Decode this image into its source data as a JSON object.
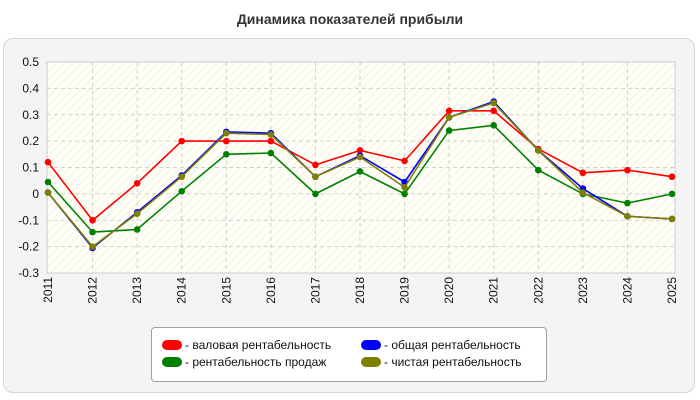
{
  "page": {
    "title": "Динамика показателей прибыли"
  },
  "chart_data": {
    "type": "line",
    "title": "Динамика показателей прибыли",
    "xlabel": "",
    "ylabel": "",
    "x": [
      "2011",
      "2012",
      "2013",
      "2014",
      "2015",
      "2016",
      "2017",
      "2018",
      "2019",
      "2020",
      "2021",
      "2022",
      "2023",
      "2024",
      "2025"
    ],
    "ylim": [
      -0.3,
      0.5
    ],
    "yticks": [
      "0.5",
      "0.4",
      "0.3",
      "0.2",
      "0.1",
      "0",
      "-0.1",
      "-0.2",
      "-0.3"
    ],
    "ytick_values": [
      0.5,
      0.4,
      0.3,
      0.2,
      0.1,
      0,
      -0.1,
      -0.2,
      -0.3
    ],
    "grid": true,
    "legend_position": "bottom-center",
    "series": [
      {
        "name": "- валовая рентабельность",
        "color": "#ff0000",
        "values": [
          0.12,
          -0.1,
          0.04,
          0.2,
          0.2,
          0.2,
          0.11,
          0.165,
          0.125,
          0.315,
          0.315,
          0.17,
          0.08,
          0.09,
          0.065
        ]
      },
      {
        "name": "- рентабельность продаж",
        "color": "#008000",
        "values": [
          0.045,
          -0.145,
          -0.135,
          0.01,
          0.15,
          0.155,
          0.0,
          0.085,
          0.0,
          0.24,
          0.26,
          0.09,
          0.0,
          -0.035,
          0.0
        ]
      },
      {
        "name": "- общая рентабельность",
        "color": "#0000ff",
        "values": [
          0.005,
          -0.205,
          -0.07,
          0.07,
          0.235,
          0.23,
          0.065,
          0.145,
          0.045,
          0.29,
          0.35,
          0.165,
          0.02,
          -0.085,
          -0.095
        ]
      },
      {
        "name": "- чистая рентабельность",
        "color": "#808000",
        "values": [
          0.005,
          -0.2,
          -0.075,
          0.065,
          0.23,
          0.225,
          0.065,
          0.14,
          0.025,
          0.29,
          0.345,
          0.165,
          0.005,
          -0.085,
          -0.095
        ]
      }
    ]
  },
  "legend": {
    "items": [
      {
        "label": "- валовая рентабельность",
        "color": "#ff0000"
      },
      {
        "label": "- общая рентабельность",
        "color": "#0000ff"
      },
      {
        "label": "- рентабельность продаж",
        "color": "#008000"
      },
      {
        "label": "- чистая рентабельность",
        "color": "#808000"
      }
    ]
  }
}
